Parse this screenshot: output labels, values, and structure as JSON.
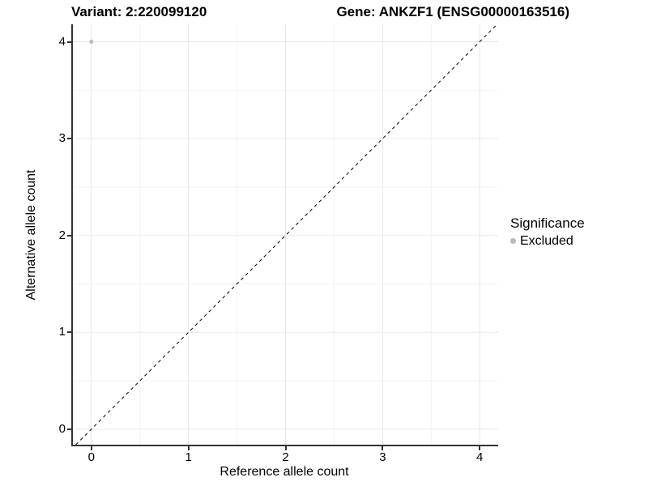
{
  "titles": {
    "variant": "Variant: 2:220099120",
    "gene": "Gene: ANKZF1 (ENSG00000163516)"
  },
  "legend": {
    "title": "Significance",
    "items": [
      {
        "label": "Excluded",
        "color": "#b9b9b9",
        "marker": "circle"
      }
    ]
  },
  "chart_data": {
    "type": "scatter",
    "title": "Variant: 2:220099120   Gene: ANKZF1 (ENSG00000163516)",
    "xlabel": "Reference allele count",
    "ylabel": "Alternative allele count",
    "xlim": [
      -0.19,
      4.19
    ],
    "ylim": [
      -0.16,
      4.18
    ],
    "xticks": [
      0,
      1,
      2,
      3,
      4
    ],
    "yticks": [
      0,
      1,
      2,
      3,
      4
    ],
    "minor_gridlines_x": [
      0.5,
      1.5,
      2.5,
      3.5
    ],
    "minor_gridlines_y": [
      0.5,
      1.5,
      2.5,
      3.5
    ],
    "grid": "on",
    "legend_position": "right",
    "series": [
      {
        "name": "Excluded",
        "marker": "circle",
        "color": "#b9b9b9",
        "points": [
          {
            "x": 0,
            "y": 4
          }
        ]
      }
    ],
    "reference_line": {
      "slope": 1,
      "intercept": 0,
      "style": "dashed",
      "color": "#000000"
    },
    "colors": {
      "axis_line": "#333333",
      "tick": "#333333",
      "major_grid": "#e8e8e8",
      "minor_grid": "#f2f2f2",
      "text": "#000000",
      "background": "#ffffff"
    }
  }
}
